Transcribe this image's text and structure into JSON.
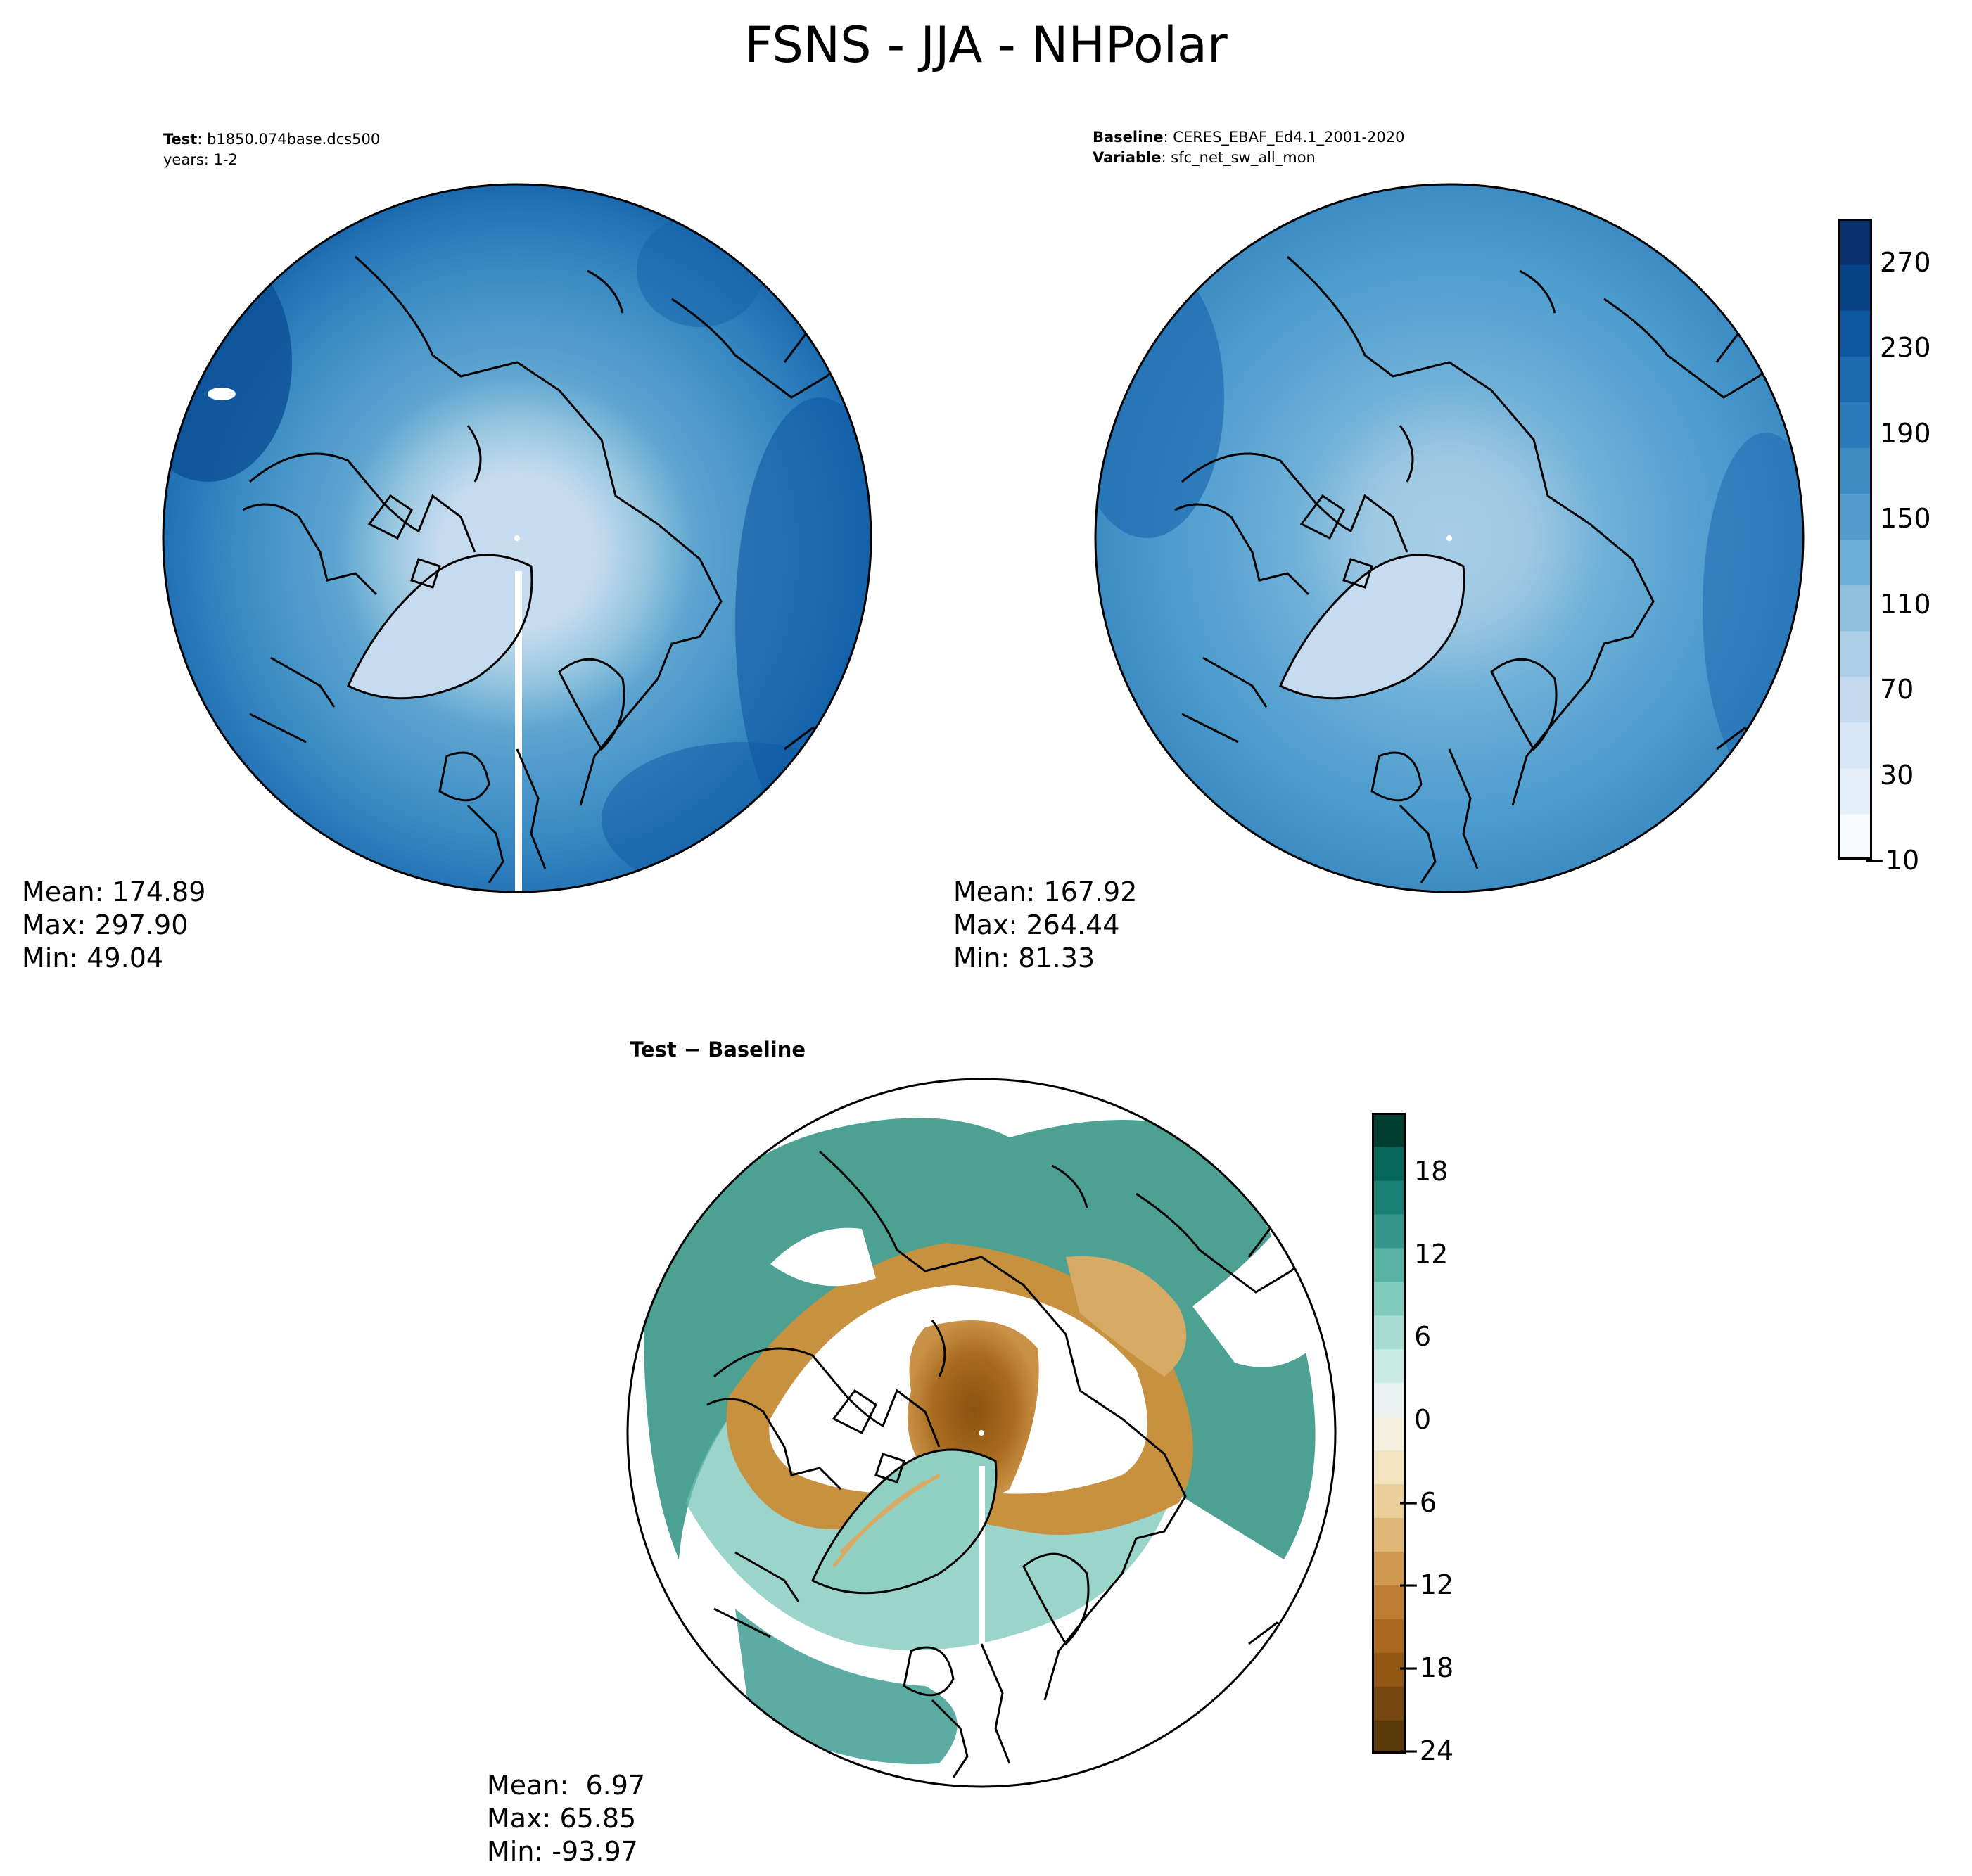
{
  "title": "FSNS - JJA - NHPolar",
  "test_panel": {
    "label": "Test",
    "sep": ":",
    "name": "b1850.074base.dcs500",
    "years": "years: 1-2",
    "stats": {
      "mean": "Mean: 174.89",
      "max": "Max: 297.90",
      "min": "Min: 49.04"
    }
  },
  "baseline_panel": {
    "label": "Baseline",
    "sep": ":",
    "name": "CERES_EBAF_Ed4.1_2001-2020",
    "var_label": "Variable",
    "var_name": "sfc_net_sw_all_mon",
    "stats": {
      "mean": "Mean: 167.92",
      "max": "Max: 264.44",
      "min": "Min: 81.33"
    }
  },
  "diff_panel": {
    "title": "Test − Baseline",
    "stats": {
      "mean": "Mean:  6.97",
      "max": "Max: 65.85",
      "min": "Min: -93.97"
    }
  },
  "colorbar_main": {
    "ticks": [
      "270",
      "230",
      "190",
      "150",
      "110",
      "70",
      "30",
      "−10"
    ],
    "colors": [
      "#f7fbff",
      "#e4eff9",
      "#d6e6f4",
      "#c3daef",
      "#abcfe6",
      "#8ebfdd",
      "#6caed6",
      "#529dcc",
      "#3c8bc3",
      "#2b7bba",
      "#1b69af",
      "#0c56a0",
      "#084387",
      "#08306b"
    ]
  },
  "colorbar_diff": {
    "ticks": [
      "18",
      "12",
      "6",
      "0",
      "−6",
      "−12",
      "−18",
      "−24"
    ],
    "colors": [
      "#5a3a0a",
      "#764710",
      "#925714",
      "#a9681e",
      "#bd7e33",
      "#cf9a4f",
      "#dfb675",
      "#ebcf9a",
      "#f3e3bf",
      "#f5efdf",
      "#e9f2f0",
      "#cbeae4",
      "#a8ddd3",
      "#80cbbd",
      "#58b3a5",
      "#35978c",
      "#197e73",
      "#05665a",
      "#003f30"
    ]
  }
}
